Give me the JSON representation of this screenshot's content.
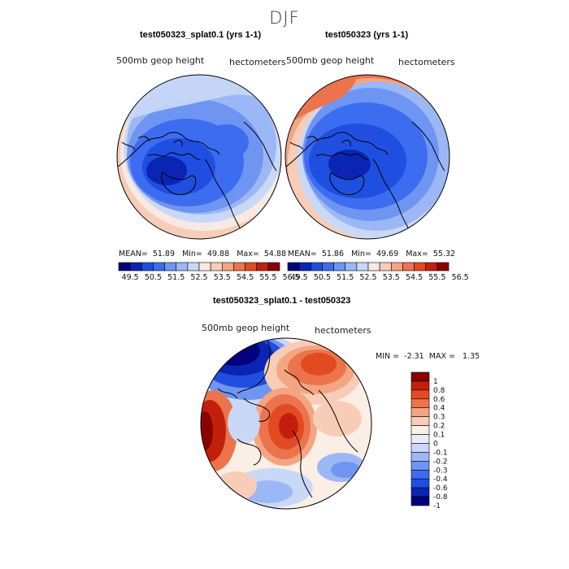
{
  "season_title": "DJF",
  "top_left": {
    "title": "test050323_splat0.1 (yrs 1-1)",
    "field_label": "500mb geop height",
    "units": "hectometers",
    "stats": {
      "mean_label": "MEAN=",
      "mean": "51.89",
      "min_label": "Min=",
      "min": "49.88",
      "max_label": "Max=",
      "max": "54.88"
    }
  },
  "top_right": {
    "title": "test050323 (yrs 1-1)",
    "field_label": "500mb geop height",
    "units": "hectometers",
    "stats": {
      "mean_label": "MEAN=",
      "mean": "51.86",
      "min_label": "Min=",
      "min": "49.69",
      "max_label": "Max=",
      "max": "55.32"
    }
  },
  "difference": {
    "title": "test050323_splat0.1 - test050323",
    "field_label": "500mb geop height",
    "units": "hectometers",
    "min_label": "MIN =",
    "min": "-2.31",
    "max_label": "MAX =",
    "max": "1.35"
  },
  "colors": {
    "seq": [
      "#00007f",
      "#0a24b4",
      "#1f4fe0",
      "#3c6cf0",
      "#6f95f2",
      "#9cb7f5",
      "#c9d8f7",
      "#f7e9e3",
      "#f8cdb7",
      "#f4a582",
      "#ec744c",
      "#e34a22",
      "#c2200d",
      "#8b0000"
    ],
    "diff": [
      "#00007f",
      "#0a24b4",
      "#1f4fe0",
      "#3c6cf0",
      "#6f95f2",
      "#9cb7f5",
      "#c9d8f7",
      "#e8eef9",
      "#fbeee5",
      "#f8cdb7",
      "#f4a582",
      "#ec744c",
      "#e34a22",
      "#c2200d",
      "#8b0000"
    ]
  },
  "chart_data": [
    {
      "type": "heatmap",
      "projection": "north polar stereographic",
      "title": "test050323_splat0.1 (yrs 1-1)",
      "variable": "500mb geop height",
      "units": "hectometers",
      "mean": 51.89,
      "min": 49.88,
      "max": 54.88,
      "colorbar_levels": [
        49.5,
        50,
        50.5,
        51,
        51.5,
        52,
        52.5,
        53,
        53.5,
        54,
        54.5,
        55,
        55.5,
        56,
        56.5
      ],
      "colorbar_tick_labels": [
        "49.5",
        "50.5",
        "51.5",
        "52.5",
        "53.5",
        "54.5",
        "55.5",
        "56.5"
      ]
    },
    {
      "type": "heatmap",
      "projection": "north polar stereographic",
      "title": "test050323 (yrs 1-1)",
      "variable": "500mb geop height",
      "units": "hectometers",
      "mean": 51.86,
      "min": 49.69,
      "max": 55.32,
      "colorbar_levels": [
        49.5,
        50,
        50.5,
        51,
        51.5,
        52,
        52.5,
        53,
        53.5,
        54,
        54.5,
        55,
        55.5,
        56,
        56.5
      ],
      "colorbar_tick_labels": [
        "49.5",
        "50.5",
        "51.5",
        "52.5",
        "53.5",
        "54.5",
        "55.5",
        "56.5"
      ]
    },
    {
      "type": "heatmap",
      "projection": "north polar stereographic",
      "title": "test050323_splat0.1 - test050323",
      "variable": "500mb geop height",
      "units": "hectometers",
      "min": -2.31,
      "max": 1.35,
      "colorbar_levels": [
        -1,
        -0.8,
        -0.6,
        -0.4,
        -0.3,
        -0.2,
        -0.1,
        0,
        0.1,
        0.2,
        0.3,
        0.4,
        0.6,
        0.8,
        1
      ],
      "colorbar_tick_labels": [
        "1",
        "0.8",
        "0.6",
        "0.4",
        "0.3",
        "0.2",
        "0.1",
        "0",
        "-0.1",
        "-0.2",
        "-0.3",
        "-0.4",
        "-0.6",
        "-0.8",
        "-1"
      ]
    }
  ]
}
